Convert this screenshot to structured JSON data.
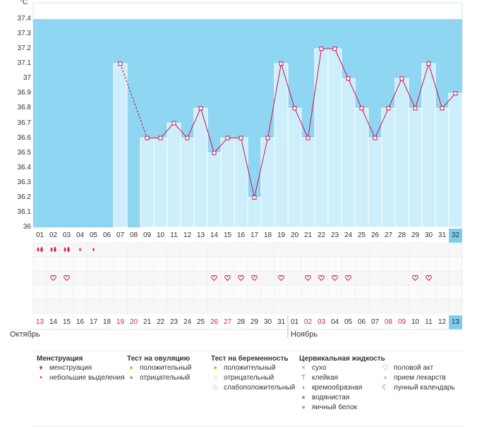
{
  "chart_data": {
    "type": "bar",
    "unit_label": "°C",
    "ylim": [
      36,
      37.4
    ],
    "y_ticks": [
      "37.4",
      "37.3",
      "37.2",
      "37.1",
      "37",
      "36.9",
      "36.8",
      "36.7",
      "36.6",
      "36.5",
      "36.4",
      "36.3",
      "36.2",
      "36.1",
      "36"
    ],
    "cycle_days": [
      "01",
      "02",
      "03",
      "04",
      "05",
      "06",
      "07",
      "08",
      "09",
      "10",
      "11",
      "12",
      "13",
      "14",
      "15",
      "16",
      "17",
      "18",
      "19",
      "20",
      "21",
      "22",
      "23",
      "24",
      "25",
      "26",
      "27",
      "28",
      "29",
      "30",
      "31",
      "32"
    ],
    "current_cycle_day": "32",
    "dates": [
      "13",
      "14",
      "15",
      "16",
      "17",
      "18",
      "19",
      "20",
      "21",
      "22",
      "23",
      "24",
      "25",
      "26",
      "27",
      "28",
      "29",
      "30",
      "31",
      "01",
      "02",
      "03",
      "04",
      "05",
      "06",
      "07",
      "08",
      "09",
      "10",
      "11",
      "12",
      "13"
    ],
    "red_dates": [
      0,
      6,
      7,
      13,
      14,
      20,
      21,
      26,
      27
    ],
    "current_date": "13",
    "months": [
      {
        "label": "Октябрь",
        "at": 0
      },
      {
        "label": "Ноябрь",
        "at": 19
      }
    ],
    "temperatures": [
      null,
      null,
      null,
      null,
      null,
      null,
      37.1,
      null,
      36.6,
      36.6,
      36.7,
      36.6,
      36.8,
      36.5,
      36.6,
      36.6,
      36.2,
      36.6,
      37.1,
      36.8,
      36.6,
      37.2,
      37.2,
      37.0,
      36.8,
      36.6,
      36.8,
      37.0,
      36.8,
      37.1,
      36.8,
      36.9
    ],
    "dashed_segment": [
      6,
      8
    ],
    "menstruation": [
      2,
      2,
      2,
      1,
      1,
      0,
      0,
      0,
      0,
      0,
      0,
      0,
      0,
      0,
      0,
      0,
      0,
      0,
      0,
      0,
      0,
      0,
      0,
      0,
      0,
      0,
      0,
      0,
      0,
      0,
      0,
      0
    ],
    "intercourse_days": [
      1,
      2,
      13,
      14,
      15,
      16,
      18,
      20,
      21,
      22,
      23,
      28,
      29
    ],
    "colors": {
      "bg": "#8fd6f2",
      "bar": "#cdeefb",
      "bar_edge": "#ffffff",
      "line": "#cc1155",
      "current": "#7fcbea",
      "grid": "#e8e8e8",
      "red": "#e0204a"
    }
  },
  "legend": [
    {
      "title": "Менструация",
      "items": [
        {
          "icon": "drop-double-icon",
          "label": "менструация"
        },
        {
          "icon": "drop-small-icon",
          "label": "небольшие выделения"
        }
      ]
    },
    {
      "title": "Тест на овуляцию",
      "items": [
        {
          "icon": "orange-dot-icon",
          "label": "положительный"
        },
        {
          "icon": "gray-dot-icon",
          "label": "отрицательный"
        }
      ]
    },
    {
      "title": "Тест на беременность",
      "items": [
        {
          "icon": "orange-dot-icon",
          "label": "положительный"
        },
        {
          "icon": "white-dot-icon",
          "label": "отрицательный"
        },
        {
          "icon": "light-dot-icon",
          "label": "слабоположительный"
        }
      ]
    },
    {
      "title": "Цервикальная жидкость",
      "items": [
        {
          "icon": "cross-icon",
          "label": "сухо"
        },
        {
          "icon": "t-icon",
          "label": "клейкая"
        },
        {
          "icon": "cream-icon",
          "label": "кремообразная"
        },
        {
          "icon": "water-icon",
          "label": "водянистая"
        },
        {
          "icon": "egg-icon",
          "label": "яичный белок"
        }
      ]
    },
    {
      "title": "",
      "items": [
        {
          "icon": "heart-icon",
          "label": "половой акт"
        },
        {
          "icon": "pill-icon",
          "label": "прием лекарств"
        },
        {
          "icon": "moon-icon",
          "label": "лунный календарь"
        }
      ]
    }
  ]
}
